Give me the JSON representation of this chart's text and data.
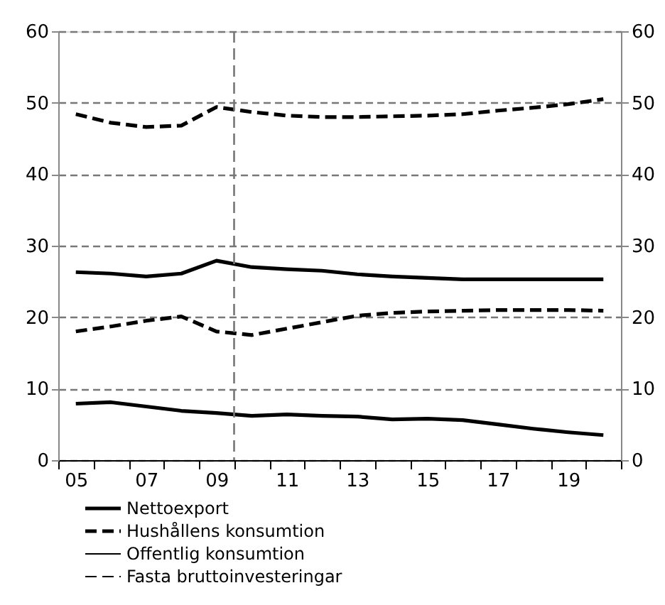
{
  "chart_data": {
    "type": "line",
    "x": [
      2005,
      2006,
      2007,
      2008,
      2009,
      2010,
      2011,
      2012,
      2013,
      2014,
      2015,
      2016,
      2017,
      2018,
      2019,
      2020
    ],
    "series": [
      {
        "name": "Nettoexport",
        "color": "#000000",
        "line_style": "solid",
        "values": [
          7.9,
          8.1,
          7.5,
          6.9,
          6.6,
          6.2,
          6.4,
          6.2,
          6.1,
          5.7,
          5.8,
          5.6,
          5.0,
          4.4,
          3.9,
          3.5
        ]
      },
      {
        "name": "Hushållens konsumtion",
        "color": "#000000",
        "line_style": "dashed",
        "values": [
          48.4,
          47.2,
          46.6,
          46.8,
          49.4,
          48.7,
          48.2,
          48.0,
          48.0,
          48.1,
          48.2,
          48.4,
          48.9,
          49.3,
          49.8,
          50.5
        ]
      },
      {
        "name": "Offentlig konsumtion",
        "color": "#000000",
        "line_style": "solid",
        "values": [
          26.3,
          26.1,
          25.7,
          26.1,
          27.9,
          27.0,
          26.7,
          26.5,
          26.0,
          25.7,
          25.5,
          25.3,
          25.3,
          25.3,
          25.3,
          25.3
        ]
      },
      {
        "name": "Fasta bruttoinvesteringar",
        "color": "#000000",
        "line_style": "dashed",
        "values": [
          18.0,
          18.7,
          19.5,
          20.1,
          18.0,
          17.5,
          18.4,
          19.3,
          20.2,
          20.6,
          20.8,
          20.9,
          21.0,
          21.0,
          21.0,
          20.9
        ]
      }
    ],
    "xlim": [
      2004.5,
      2020.5
    ],
    "xticks": [
      {
        "value": 2004.5,
        "label": null
      },
      {
        "value": 2005,
        "label": "05"
      },
      {
        "value": 2005.5,
        "label": null
      },
      {
        "value": 2006.5,
        "label": null
      },
      {
        "value": 2007,
        "label": "07"
      },
      {
        "value": 2007.5,
        "label": null
      },
      {
        "value": 2008.5,
        "label": null
      },
      {
        "value": 2009,
        "label": "09"
      },
      {
        "value": 2009.5,
        "label": null
      },
      {
        "value": 2010.5,
        "label": null
      },
      {
        "value": 2011,
        "label": "11"
      },
      {
        "value": 2011.5,
        "label": null
      },
      {
        "value": 2012.5,
        "label": null
      },
      {
        "value": 2013,
        "label": "13"
      },
      {
        "value": 2013.5,
        "label": null
      },
      {
        "value": 2014.5,
        "label": null
      },
      {
        "value": 2015,
        "label": "15"
      },
      {
        "value": 2015.5,
        "label": null
      },
      {
        "value": 2016.5,
        "label": null
      },
      {
        "value": 2017,
        "label": "17"
      },
      {
        "value": 2017.5,
        "label": null
      },
      {
        "value": 2018.5,
        "label": null
      },
      {
        "value": 2019,
        "label": "19"
      },
      {
        "value": 2019.5,
        "label": null
      },
      {
        "value": 2020.5,
        "label": null
      }
    ],
    "ylim": [
      0,
      60
    ],
    "yticks": [
      0,
      10,
      20,
      30,
      40,
      50,
      60
    ],
    "y2lim": [
      0,
      60
    ],
    "y2ticks": [
      0,
      10,
      20,
      30,
      40,
      50,
      60
    ],
    "ref_lines": [
      {
        "axis": "x",
        "value": 2009.5,
        "color": "#777777",
        "line_style": "dashed"
      }
    ],
    "grid": "y",
    "legend": "bottom"
  }
}
